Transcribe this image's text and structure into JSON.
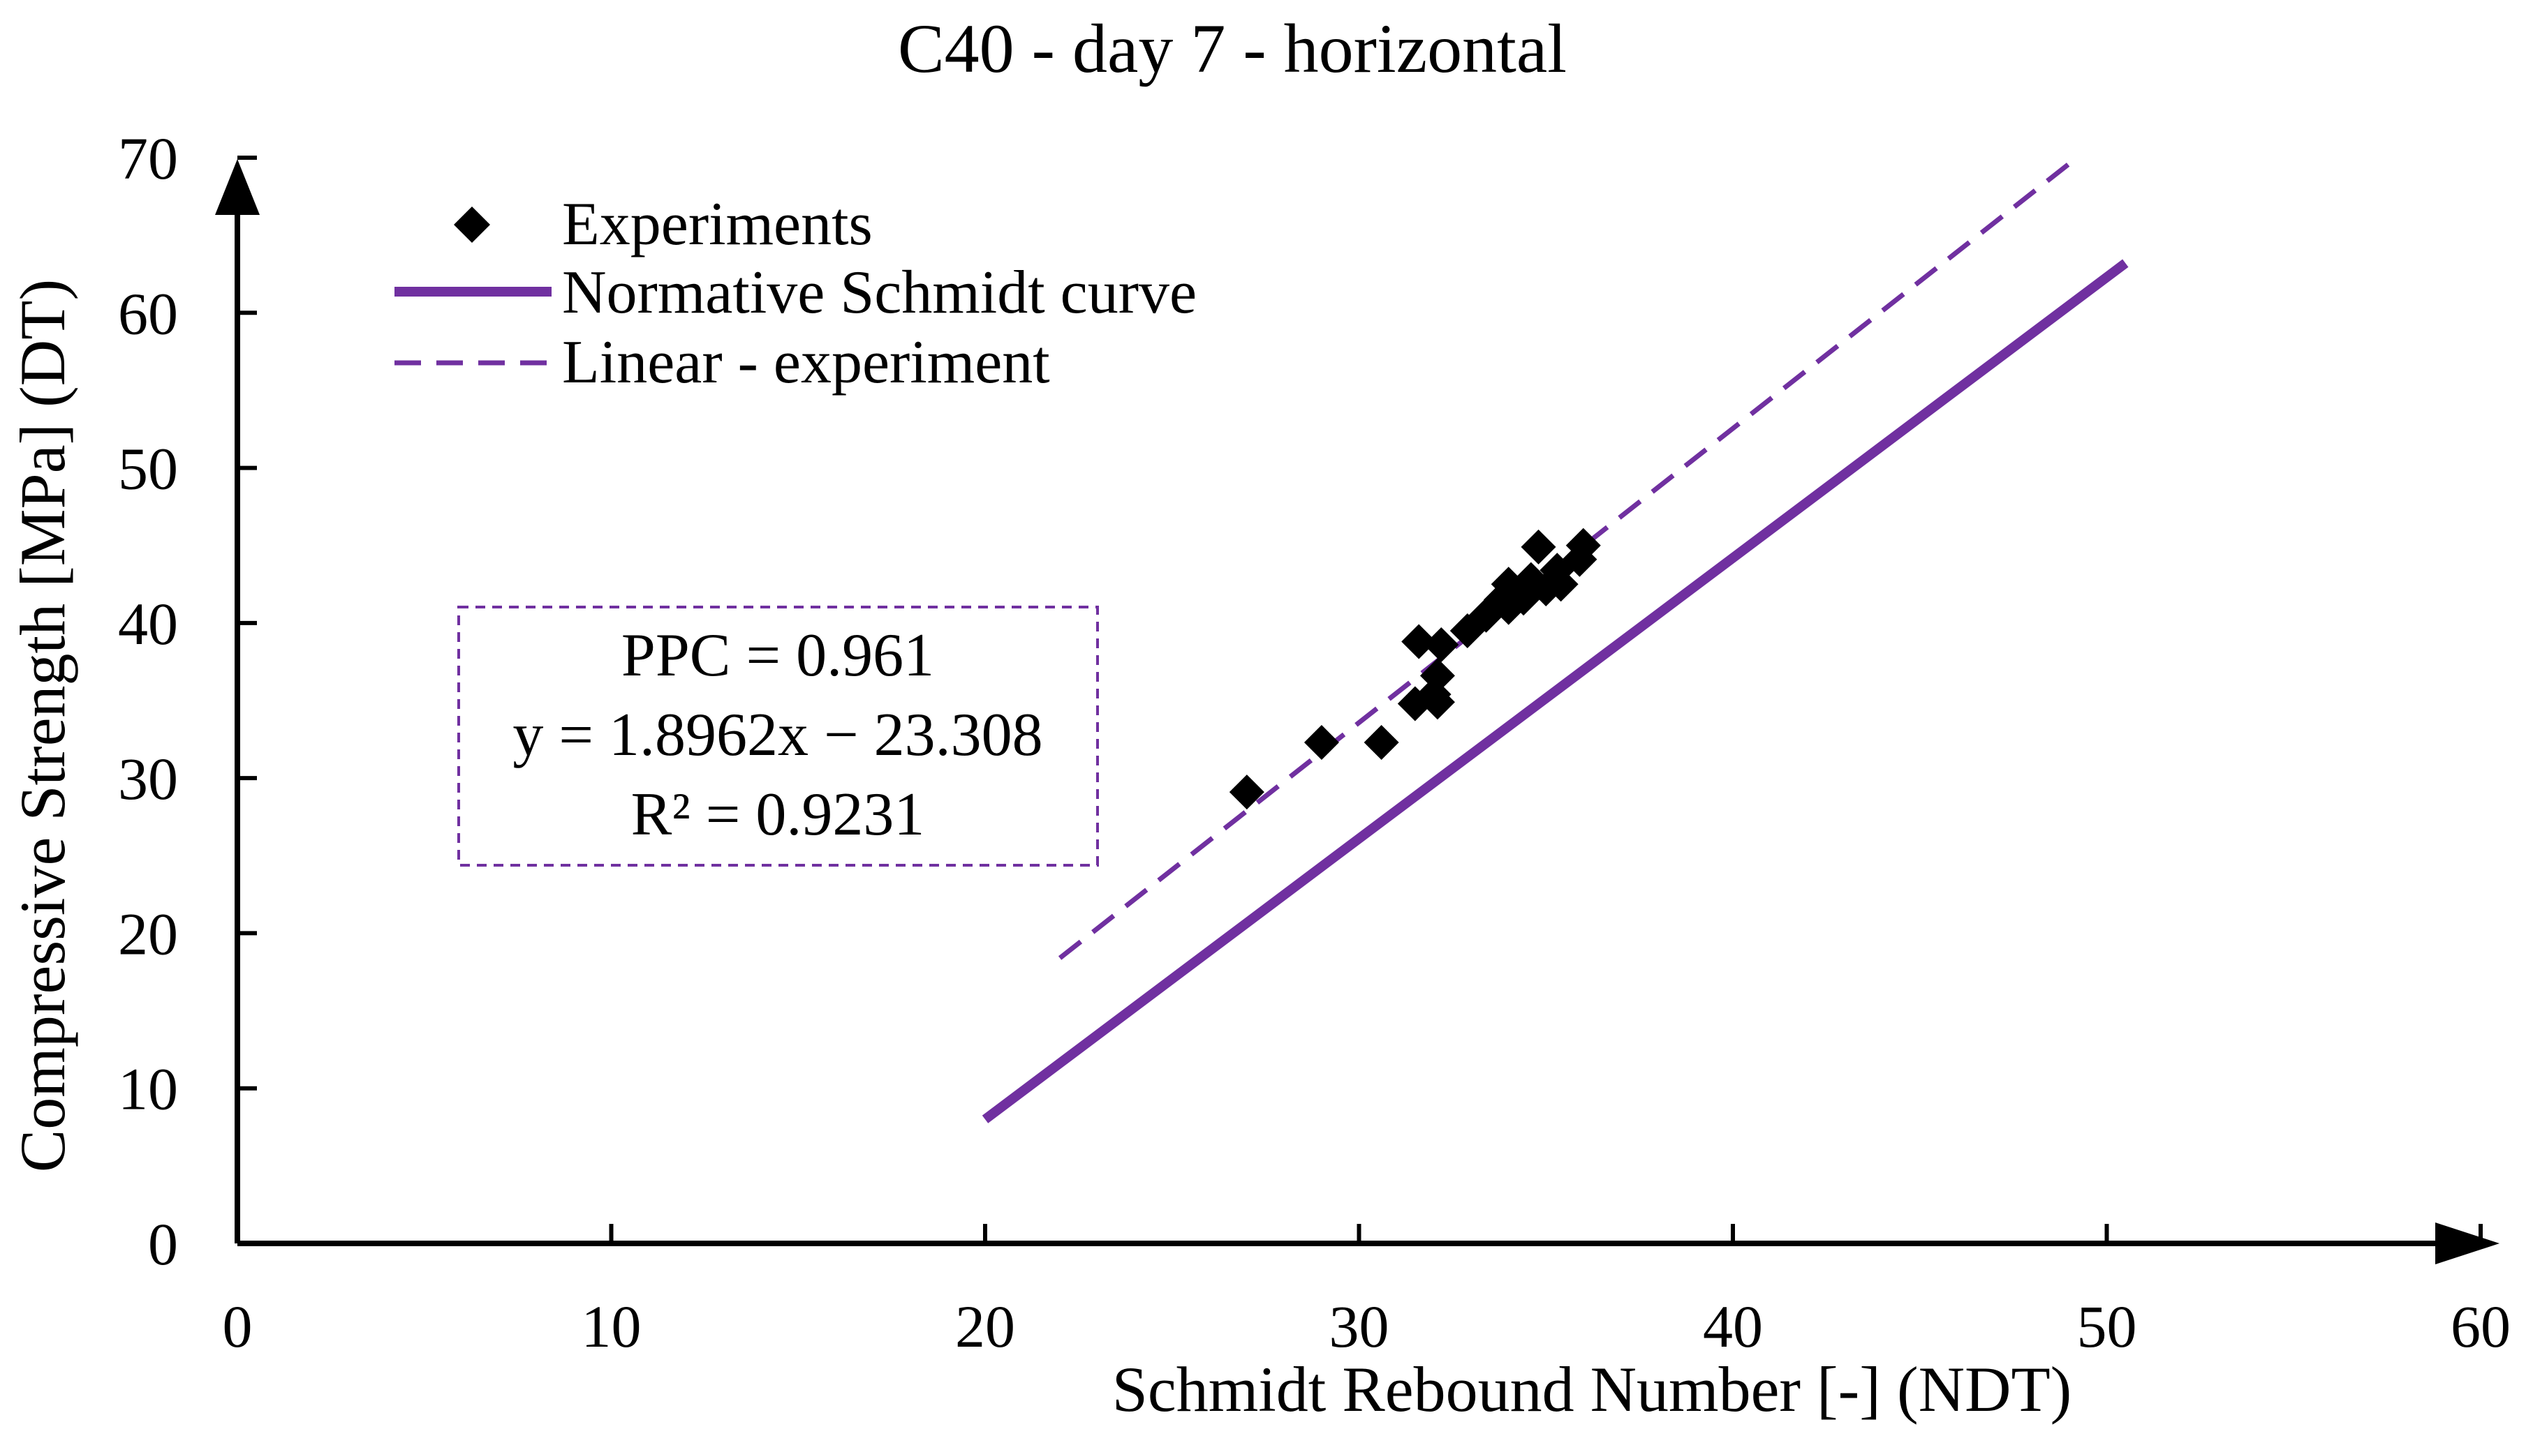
{
  "chart_data": {
    "type": "scatter",
    "title": "C40 - day 7 - horizontal",
    "xlabel": "Schmidt Rebound Number [-] (NDT)",
    "ylabel": "Compressive Strength [MPa] (DT)",
    "xlim": [
      0,
      60
    ],
    "ylim": [
      0,
      70
    ],
    "xticks": [
      0,
      10,
      20,
      30,
      40,
      50,
      60
    ],
    "yticks": [
      0,
      10,
      20,
      30,
      40,
      50,
      60,
      70
    ],
    "grid": false,
    "legend_position": "top-left",
    "legend": {
      "experiments": "Experiments",
      "normative": "Normative Schmidt curve",
      "linear": "Linear - experiment"
    },
    "colors": {
      "series": "#7030a0",
      "points": "#000000",
      "axis": "#000000"
    },
    "series": [
      {
        "name": "Experiments",
        "kind": "scatter",
        "marker": "diamond",
        "points": [
          [
            27.0,
            29.1
          ],
          [
            29.0,
            32.3
          ],
          [
            30.6,
            32.3
          ],
          [
            31.5,
            34.8
          ],
          [
            31.6,
            38.8
          ],
          [
            32.0,
            35.4
          ],
          [
            32.1,
            34.9
          ],
          [
            32.1,
            36.6
          ],
          [
            32.2,
            38.6
          ],
          [
            32.9,
            39.5
          ],
          [
            33.4,
            40.5
          ],
          [
            33.8,
            41.5
          ],
          [
            34.0,
            41.0
          ],
          [
            34.0,
            42.5
          ],
          [
            34.4,
            41.6
          ],
          [
            34.6,
            42.8
          ],
          [
            34.8,
            44.9
          ],
          [
            35.0,
            42.2
          ],
          [
            35.3,
            43.4
          ],
          [
            35.4,
            42.5
          ],
          [
            35.9,
            44.1
          ],
          [
            36.0,
            45.0
          ]
        ]
      },
      {
        "name": "Normative Schmidt curve",
        "kind": "line",
        "style": "solid",
        "points": [
          [
            20,
            8.0
          ],
          [
            50.5,
            63.2
          ]
        ]
      },
      {
        "name": "Linear - experiment",
        "kind": "line",
        "style": "dashed",
        "points": [
          [
            22,
            18.4
          ],
          [
            49.2,
            70.0
          ]
        ]
      }
    ],
    "annotation": {
      "lines": [
        "PPC = 0.961",
        "y = 1.8962x − 23.308",
        "R² = 0.9231"
      ]
    }
  }
}
